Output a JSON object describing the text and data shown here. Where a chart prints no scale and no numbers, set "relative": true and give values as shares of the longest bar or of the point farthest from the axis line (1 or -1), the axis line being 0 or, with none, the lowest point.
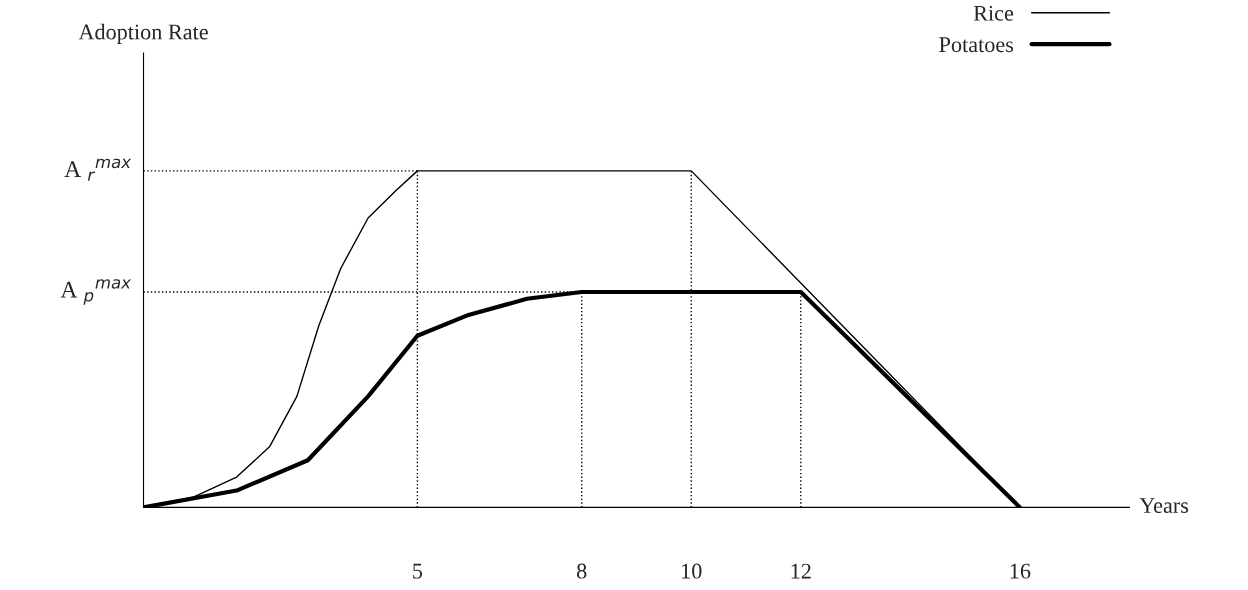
{
  "chart_data": {
    "type": "line",
    "relative": true,
    "xlabel": "Years",
    "annotations": [
      "Adoption Rate"
    ],
    "xlim": [
      0,
      18
    ],
    "xticks": [
      5,
      8,
      10,
      12,
      16
    ],
    "legend": "top right",
    "grid": false,
    "series": [
      {
        "name": "Rice",
        "color": "#000000",
        "x": [
          0,
          0.9,
          1.7,
          2.3,
          2.8,
          3.2,
          3.6,
          4.1,
          4.6,
          5,
          10,
          16
        ],
        "values": [
          0,
          0.03,
          0.09,
          0.18,
          0.33,
          0.54,
          0.71,
          0.86,
          0.94,
          1,
          1,
          0
        ]
      },
      {
        "name": "Potatoes",
        "color": "#000000",
        "x": [
          0,
          1.7,
          3.0,
          4.1,
          5,
          5.9,
          7,
          8,
          12,
          16
        ],
        "values": [
          0,
          0.05,
          0.14,
          0.33,
          0.51,
          0.57,
          0.62,
          0.64,
          0.64,
          0
        ]
      }
    ],
    "ref_lines": [
      {
        "axis": "y",
        "value": 1,
        "label": "A $_{r}$$^{max}$",
        "line_style": "dotted"
      },
      {
        "axis": "y",
        "value": 0.64,
        "label": "A $_{p}$$^{max}$",
        "line_style": "dotted"
      },
      {
        "axis": "x",
        "value": 5,
        "line_style": "dotted"
      },
      {
        "axis": "x",
        "value": 8,
        "line_style": "dotted"
      },
      {
        "axis": "x",
        "value": 10,
        "line_style": "dotted"
      },
      {
        "axis": "x",
        "value": 12,
        "line_style": "dotted"
      }
    ]
  }
}
